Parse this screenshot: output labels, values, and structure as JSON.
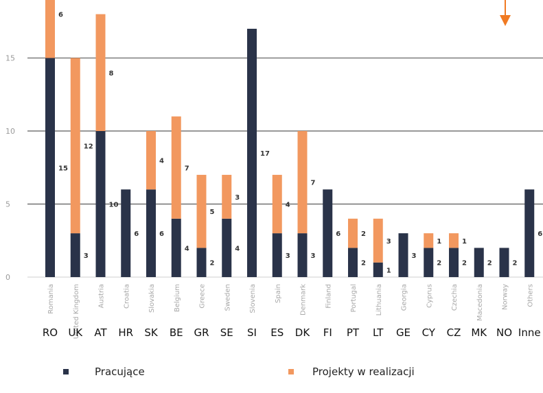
{
  "chart_data": {
    "type": "bar",
    "stacked": true,
    "categories": [
      "RO",
      "UK",
      "AT",
      "HR",
      "SK",
      "BE",
      "GR",
      "SE",
      "SI",
      "ES",
      "DK",
      "FI",
      "PT",
      "LT",
      "GE",
      "CY",
      "CZ",
      "MK",
      "NO",
      "Inne"
    ],
    "rotated_labels": [
      "Romania",
      "United Kingdom",
      "Austria",
      "Croatia",
      "Slovakia",
      "Belgium",
      "Greece",
      "Sweden",
      "Slovenia",
      "Spain",
      "Denmark",
      "Finland",
      "Portugal",
      "Lithuania",
      "Georgia",
      "Cyprus",
      "Czechia",
      "Macedonia",
      "Norway",
      "Others"
    ],
    "series": [
      {
        "name": "Pracujące",
        "color": "#2a3349",
        "values": [
          15,
          3,
          10,
          6,
          6,
          4,
          2,
          4,
          17,
          3,
          3,
          6,
          2,
          1,
          3,
          2,
          2,
          2,
          2,
          6
        ]
      },
      {
        "name": "Projekty w realizacji",
        "color": "#f2985f",
        "values": [
          6,
          12,
          8,
          0,
          4,
          7,
          5,
          3,
          0,
          4,
          7,
          0,
          2,
          3,
          0,
          1,
          1,
          0,
          0,
          0
        ]
      }
    ],
    "bar_labels": {
      "Pracujące": [
        "15",
        "3",
        "10",
        "6",
        "6",
        "4",
        "2",
        "4",
        "17",
        "3",
        "3",
        "6",
        "2",
        "1",
        "3",
        "2",
        "2",
        "2",
        "2",
        "6"
      ],
      "Projekty w realizacji": [
        "6",
        "12",
        "8",
        "",
        "4",
        "7",
        "5",
        "3",
        "",
        "4",
        "7",
        "",
        "2",
        "3",
        "",
        "1",
        "1",
        "",
        "",
        ""
      ]
    },
    "y_ticks": [
      "0",
      "5",
      "10",
      "15"
    ],
    "ylim": [
      0,
      18.5
    ],
    "grid": true,
    "legend_position": "bottom",
    "title": "",
    "xlabel": "",
    "ylabel": ""
  },
  "legend": {
    "items": [
      {
        "label": "Pracujące",
        "color": "#2a3349"
      },
      {
        "label": "Projekty w realizacji",
        "color": "#f2985f"
      }
    ]
  },
  "accent": {
    "arrow_color": "#f07a22"
  }
}
